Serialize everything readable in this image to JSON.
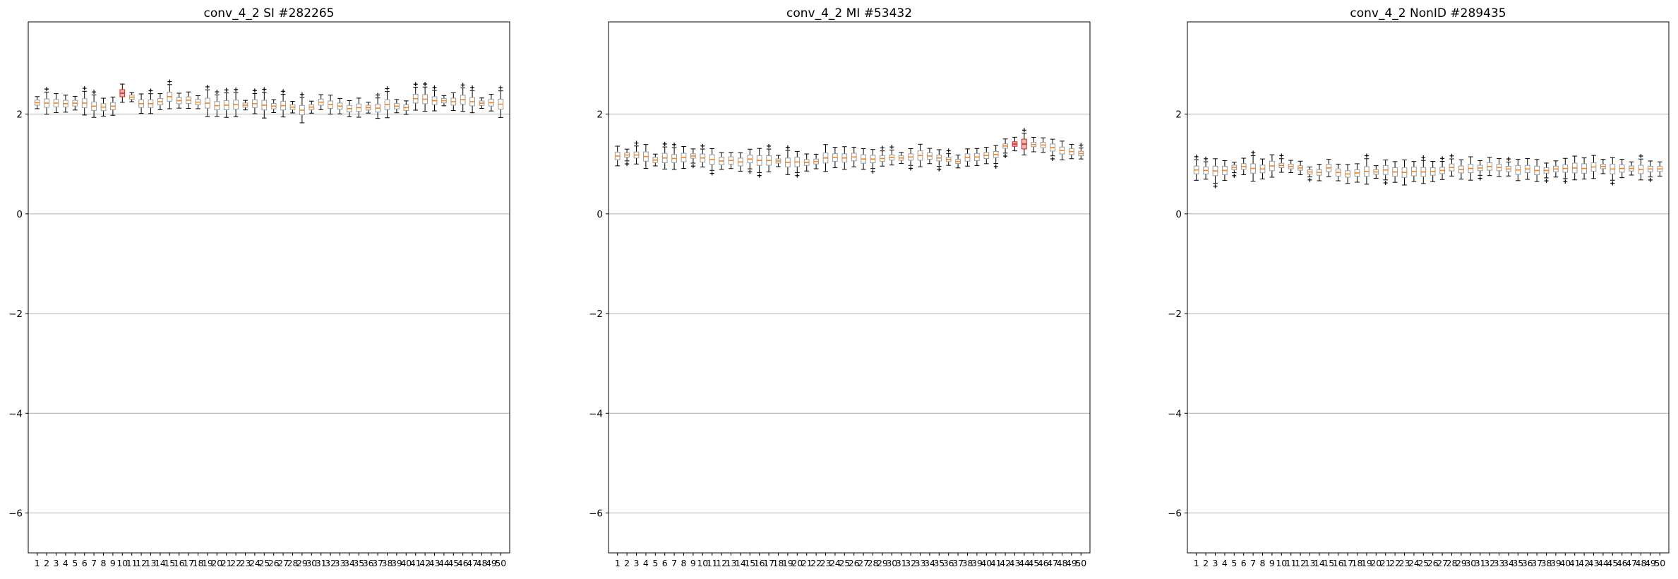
{
  "chart_data": [
    {
      "type": "box",
      "title": "conv_4_2 SI #282265",
      "xlabel": "",
      "ylabel": "",
      "ylim": [
        -6.8,
        3.85
      ],
      "yticks": [
        -6,
        -4,
        -2,
        0,
        2
      ],
      "ytick_labels": [
        "−6",
        "−4",
        "−2",
        "0",
        "2"
      ],
      "grid_y": true,
      "categories": [
        "1",
        "2",
        "3",
        "4",
        "5",
        "6",
        "7",
        "8",
        "9",
        "10",
        "11",
        "12",
        "13",
        "14",
        "15",
        "16",
        "17",
        "18",
        "19",
        "20",
        "21",
        "22",
        "23",
        "24",
        "25",
        "26",
        "27",
        "28",
        "29",
        "30",
        "31",
        "32",
        "33",
        "34",
        "35",
        "36",
        "37",
        "38",
        "39",
        "40",
        "41",
        "42",
        "43",
        "44",
        "45",
        "46",
        "47",
        "48",
        "49",
        "50"
      ],
      "medians": [
        2.23,
        2.22,
        2.22,
        2.21,
        2.22,
        2.22,
        2.16,
        2.14,
        2.16,
        2.42,
        2.34,
        2.21,
        2.21,
        2.25,
        2.35,
        2.27,
        2.28,
        2.24,
        2.22,
        2.17,
        2.18,
        2.19,
        2.18,
        2.21,
        2.18,
        2.16,
        2.17,
        2.14,
        2.08,
        2.14,
        2.24,
        2.19,
        2.16,
        2.11,
        2.13,
        2.13,
        2.12,
        2.19,
        2.16,
        2.13,
        2.31,
        2.3,
        2.27,
        2.27,
        2.25,
        2.29,
        2.25,
        2.22,
        2.23,
        2.2
      ],
      "highlight_color": "#d62728",
      "highlighted_categories": [
        "10"
      ]
    },
    {
      "type": "box",
      "title": "conv_4_2 MI #53432",
      "xlabel": "",
      "ylabel": "",
      "ylim": [
        -6.8,
        3.85
      ],
      "yticks": [
        -6,
        -4,
        -2,
        0,
        2
      ],
      "ytick_labels": [
        "−6",
        "−4",
        "−2",
        "0",
        "2"
      ],
      "grid_y": true,
      "categories": [
        "1",
        "2",
        "3",
        "4",
        "5",
        "6",
        "7",
        "8",
        "9",
        "10",
        "11",
        "12",
        "13",
        "14",
        "15",
        "16",
        "17",
        "18",
        "19",
        "20",
        "21",
        "22",
        "23",
        "24",
        "25",
        "26",
        "27",
        "28",
        "29",
        "30",
        "31",
        "32",
        "33",
        "34",
        "35",
        "36",
        "37",
        "38",
        "39",
        "40",
        "41",
        "42",
        "43",
        "44",
        "45",
        "46",
        "47",
        "48",
        "49",
        "50"
      ],
      "medians": [
        1.16,
        1.18,
        1.18,
        1.15,
        1.08,
        1.12,
        1.11,
        1.13,
        1.16,
        1.12,
        1.09,
        1.06,
        1.07,
        1.04,
        1.1,
        1.07,
        1.07,
        1.06,
        1.03,
        1.04,
        1.03,
        1.05,
        1.12,
        1.13,
        1.12,
        1.14,
        1.1,
        1.1,
        1.11,
        1.13,
        1.12,
        1.14,
        1.17,
        1.16,
        1.12,
        1.09,
        1.05,
        1.13,
        1.14,
        1.17,
        1.19,
        1.36,
        1.4,
        1.4,
        1.39,
        1.38,
        1.33,
        1.27,
        1.25,
        1.21
      ],
      "highlight_color": "#d62728",
      "highlighted_categories": [
        "43",
        "44"
      ]
    },
    {
      "type": "box",
      "title": "conv_4_2 NonID #289435",
      "xlabel": "",
      "ylabel": "",
      "ylim": [
        -6.8,
        3.85
      ],
      "yticks": [
        -6,
        -4,
        -2,
        0,
        2
      ],
      "ytick_labels": [
        "−6",
        "−4",
        "−2",
        "0",
        "2"
      ],
      "grid_y": true,
      "categories": [
        "1",
        "2",
        "3",
        "4",
        "5",
        "6",
        "7",
        "8",
        "9",
        "10",
        "11",
        "12",
        "13",
        "14",
        "15",
        "16",
        "17",
        "18",
        "19",
        "20",
        "21",
        "22",
        "23",
        "24",
        "25",
        "26",
        "27",
        "28",
        "29",
        "30",
        "31",
        "32",
        "33",
        "34",
        "35",
        "36",
        "37",
        "38",
        "39",
        "40",
        "41",
        "42",
        "43",
        "44",
        "45",
        "46",
        "47",
        "48",
        "49",
        "50"
      ],
      "medians": [
        0.88,
        0.87,
        0.86,
        0.87,
        0.93,
        0.95,
        0.91,
        0.9,
        0.96,
        0.97,
        0.95,
        0.92,
        0.84,
        0.83,
        0.92,
        0.83,
        0.8,
        0.82,
        0.85,
        0.84,
        0.88,
        0.84,
        0.83,
        0.85,
        0.84,
        0.85,
        0.87,
        0.93,
        0.89,
        0.91,
        0.92,
        0.95,
        0.93,
        0.9,
        0.88,
        0.9,
        0.87,
        0.87,
        0.9,
        0.91,
        0.92,
        0.91,
        0.94,
        0.95,
        0.9,
        0.91,
        0.91,
        0.89,
        0.9,
        0.9
      ],
      "highlight_color": "#d62728",
      "highlighted_categories": []
    }
  ]
}
